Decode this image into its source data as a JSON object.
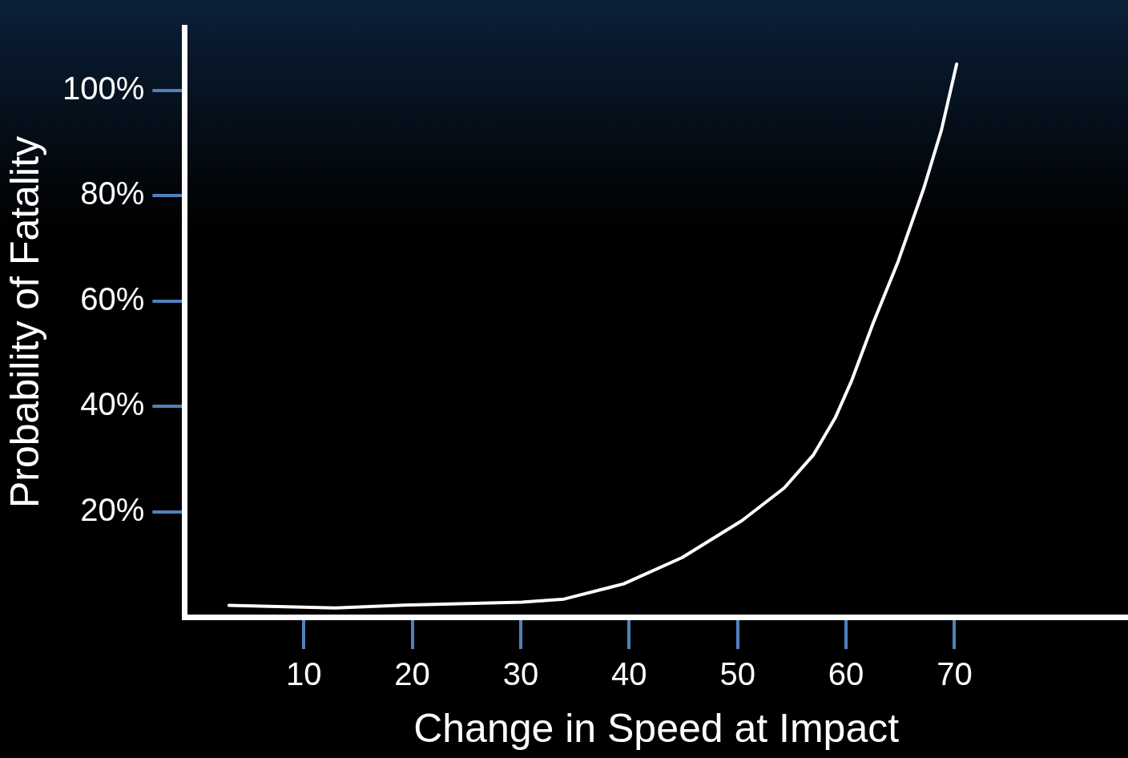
{
  "chart_data": {
    "type": "line",
    "xlabel": "Change in Speed at Impact",
    "ylabel": "Probability of Fatality",
    "x": [
      3.1,
      12.9,
      19.9,
      30.1,
      34,
      39.5,
      44.9,
      50.4,
      54.3,
      57,
      59,
      60.5,
      62.5,
      64.8,
      67.2,
      68.8,
      70.2
    ],
    "series": [
      {
        "color": "#ffffff",
        "values": [
          2.2,
          1.7,
          2.3,
          2.8,
          3.4,
          6.3,
          11.3,
          18.3,
          24.5,
          30.8,
          37.8,
          44.8,
          55.8,
          67.5,
          81.6,
          92.5,
          105
        ]
      }
    ],
    "xlim": [
      -1,
      86
    ],
    "ylim": [
      0,
      112
    ],
    "xticks": [
      10,
      20,
      30,
      40,
      50,
      60,
      70
    ],
    "yticks": [
      {
        "value": 20,
        "label": "20%"
      },
      {
        "value": 40,
        "label": "40%"
      },
      {
        "value": 60,
        "label": "60%"
      },
      {
        "value": 80,
        "label": "80%"
      },
      {
        "value": 100,
        "label": "100%"
      }
    ],
    "grid": false,
    "legend": false,
    "marker": "none"
  }
}
